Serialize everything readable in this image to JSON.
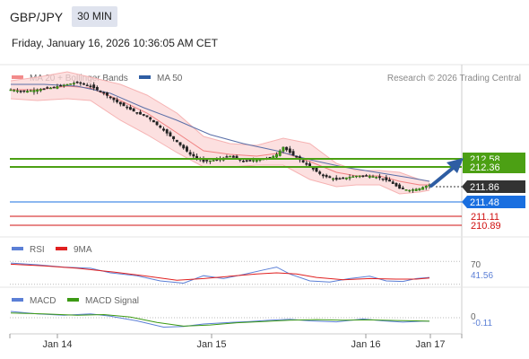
{
  "header": {
    "pair": "GBP/JPY",
    "timeframe": "30 MIN",
    "datetime": "Friday, January 16, 2026 10:36:05 AM CET"
  },
  "price_panel": {
    "legend": [
      {
        "label": "MA 20 + Bollinger Bands",
        "color": "#f28b8b"
      },
      {
        "label": "MA 50",
        "color": "#2e5da3"
      }
    ],
    "credit": "Research © 2026 Trading Central"
  },
  "rsi_panel": {
    "legend": [
      {
        "label": "RSI",
        "color": "#5b7fd6"
      },
      {
        "label": "9MA",
        "color": "#e02020"
      }
    ]
  },
  "macd_panel": {
    "legend": [
      {
        "label": "MACD",
        "color": "#5b7fd6"
      },
      {
        "label": "MACD Signal",
        "color": "#3c9a14"
      }
    ]
  },
  "chart_data": {
    "type": "candlestick",
    "x_ticks": [
      "Jan 14",
      "Jan 15",
      "Jan 16",
      "Jan 17"
    ],
    "price_axis": {
      "min": 210.55,
      "max": 213.2
    },
    "levels": [
      {
        "value": 212.58,
        "label": "212.58",
        "kind": "resistance",
        "color": "#4ca014"
      },
      {
        "value": 212.36,
        "label": "212.36",
        "kind": "resistance",
        "color": "#4ca014"
      },
      {
        "value": 211.86,
        "label": "211.86",
        "kind": "current",
        "color": "#333333"
      },
      {
        "value": 211.48,
        "label": "211.48",
        "kind": "pivot",
        "color": "#1a6fe0"
      },
      {
        "value": 211.11,
        "label": "211.11",
        "kind": "support",
        "color": "#d01010"
      },
      {
        "value": 210.89,
        "label": "210.89",
        "kind": "support",
        "color": "#d01010"
      }
    ],
    "price_path": [
      [
        0,
        214.6
      ],
      [
        4,
        214.55
      ],
      [
        8,
        214.6
      ],
      [
        12,
        214.65
      ],
      [
        17,
        214.75
      ],
      [
        20,
        214.8
      ],
      [
        24,
        214.7
      ],
      [
        28,
        214.5
      ],
      [
        33,
        214.2
      ],
      [
        38,
        213.95
      ],
      [
        41,
        213.85
      ],
      [
        45,
        213.55
      ],
      [
        50,
        213.15
      ],
      [
        54,
        212.8
      ],
      [
        58,
        212.6
      ],
      [
        62,
        212.65
      ],
      [
        66,
        212.75
      ],
      [
        70,
        212.6
      ],
      [
        74,
        212.65
      ],
      [
        78,
        212.7
      ],
      [
        80,
        212.8
      ],
      [
        82,
        213.0
      ],
      [
        84,
        212.85
      ],
      [
        87,
        212.65
      ],
      [
        90,
        212.45
      ],
      [
        94,
        212.2
      ],
      [
        98,
        212.1
      ],
      [
        101,
        212.15
      ],
      [
        104,
        212.2
      ],
      [
        108,
        212.2
      ],
      [
        111,
        212.15
      ],
      [
        114,
        212.05
      ],
      [
        117,
        211.85
      ],
      [
        120,
        211.8
      ],
      [
        123,
        211.85
      ],
      [
        126,
        211.95
      ]
    ],
    "ma20_bollinger": {
      "mid": [
        [
          0,
          214.6
        ],
        [
          8,
          214.6
        ],
        [
          17,
          214.7
        ],
        [
          24,
          214.65
        ],
        [
          33,
          214.3
        ],
        [
          41,
          213.95
        ],
        [
          50,
          213.4
        ],
        [
          58,
          212.9
        ],
        [
          66,
          212.8
        ],
        [
          74,
          212.75
        ],
        [
          82,
          212.85
        ],
        [
          90,
          212.6
        ],
        [
          98,
          212.3
        ],
        [
          104,
          212.2
        ],
        [
          111,
          212.2
        ],
        [
          117,
          212.05
        ],
        [
          123,
          211.95
        ],
        [
          126,
          211.95
        ]
      ],
      "upper": [
        [
          0,
          214.85
        ],
        [
          8,
          214.95
        ],
        [
          17,
          215.1
        ],
        [
          24,
          214.95
        ],
        [
          33,
          214.75
        ],
        [
          41,
          214.45
        ],
        [
          50,
          213.95
        ],
        [
          58,
          213.3
        ],
        [
          66,
          213.1
        ],
        [
          74,
          213.05
        ],
        [
          82,
          213.25
        ],
        [
          90,
          213.1
        ],
        [
          98,
          212.55
        ],
        [
          104,
          212.35
        ],
        [
          111,
          212.35
        ],
        [
          117,
          212.3
        ],
        [
          123,
          212.1
        ],
        [
          126,
          212.05
        ]
      ],
      "lower": [
        [
          0,
          214.35
        ],
        [
          8,
          214.3
        ],
        [
          17,
          214.35
        ],
        [
          24,
          214.3
        ],
        [
          33,
          213.75
        ],
        [
          41,
          213.35
        ],
        [
          50,
          212.85
        ],
        [
          58,
          212.45
        ],
        [
          66,
          212.45
        ],
        [
          74,
          212.5
        ],
        [
          82,
          212.5
        ],
        [
          90,
          212.1
        ],
        [
          98,
          211.9
        ],
        [
          104,
          211.95
        ],
        [
          111,
          211.95
        ],
        [
          117,
          211.7
        ],
        [
          123,
          211.75
        ],
        [
          126,
          211.8
        ]
      ]
    },
    "ma50": [
      [
        0,
        214.75
      ],
      [
        10,
        214.75
      ],
      [
        20,
        214.7
      ],
      [
        30,
        214.5
      ],
      [
        40,
        214.1
      ],
      [
        50,
        213.75
      ],
      [
        60,
        213.35
      ],
      [
        70,
        213.1
      ],
      [
        80,
        212.9
      ],
      [
        90,
        212.65
      ],
      [
        100,
        212.45
      ],
      [
        110,
        212.3
      ],
      [
        120,
        212.15
      ],
      [
        126,
        212.05
      ]
    ],
    "rsi": {
      "axis": {
        "min": 25,
        "max": 75
      },
      "labels": [
        "70",
        "41.56"
      ],
      "rsi_line": [
        [
          0,
          67
        ],
        [
          8,
          64
        ],
        [
          16,
          60
        ],
        [
          24,
          58
        ],
        [
          30,
          50
        ],
        [
          38,
          45
        ],
        [
          45,
          36
        ],
        [
          52,
          32
        ],
        [
          58,
          45
        ],
        [
          64,
          40
        ],
        [
          70,
          47
        ],
        [
          76,
          55
        ],
        [
          80,
          60
        ],
        [
          84,
          48
        ],
        [
          90,
          36
        ],
        [
          96,
          34
        ],
        [
          102,
          40
        ],
        [
          108,
          44
        ],
        [
          113,
          36
        ],
        [
          118,
          35
        ],
        [
          122,
          40
        ],
        [
          126,
          42
        ]
      ],
      "ma9": [
        [
          0,
          65
        ],
        [
          10,
          62
        ],
        [
          20,
          58
        ],
        [
          30,
          52
        ],
        [
          40,
          45
        ],
        [
          50,
          37
        ],
        [
          58,
          40
        ],
        [
          66,
          44
        ],
        [
          74,
          48
        ],
        [
          80,
          50
        ],
        [
          86,
          48
        ],
        [
          92,
          42
        ],
        [
          100,
          38
        ],
        [
          108,
          40
        ],
        [
          116,
          39
        ],
        [
          122,
          39
        ],
        [
          126,
          41
        ]
      ]
    },
    "macd": {
      "labels": [
        "0",
        "-0.11"
      ],
      "macd_line": [
        [
          0,
          0.2
        ],
        [
          8,
          0.12
        ],
        [
          16,
          0.08
        ],
        [
          24,
          0.12
        ],
        [
          30,
          0.05
        ],
        [
          38,
          -0.1
        ],
        [
          46,
          -0.3
        ],
        [
          52,
          -0.28
        ],
        [
          58,
          -0.2
        ],
        [
          66,
          -0.15
        ],
        [
          72,
          -0.12
        ],
        [
          78,
          -0.08
        ],
        [
          84,
          -0.05
        ],
        [
          90,
          -0.1
        ],
        [
          98,
          -0.13
        ],
        [
          106,
          -0.04
        ],
        [
          112,
          -0.1
        ],
        [
          118,
          -0.14
        ],
        [
          124,
          -0.11
        ],
        [
          126,
          -0.11
        ]
      ],
      "signal_line": [
        [
          0,
          0.15
        ],
        [
          10,
          0.12
        ],
        [
          20,
          0.08
        ],
        [
          28,
          0.1
        ],
        [
          36,
          0.02
        ],
        [
          44,
          -0.15
        ],
        [
          52,
          -0.27
        ],
        [
          60,
          -0.23
        ],
        [
          68,
          -0.16
        ],
        [
          76,
          -0.12
        ],
        [
          84,
          -0.08
        ],
        [
          92,
          -0.06
        ],
        [
          100,
          -0.08
        ],
        [
          108,
          -0.07
        ],
        [
          116,
          -0.09
        ],
        [
          122,
          -0.1
        ],
        [
          126,
          -0.11
        ]
      ]
    }
  }
}
